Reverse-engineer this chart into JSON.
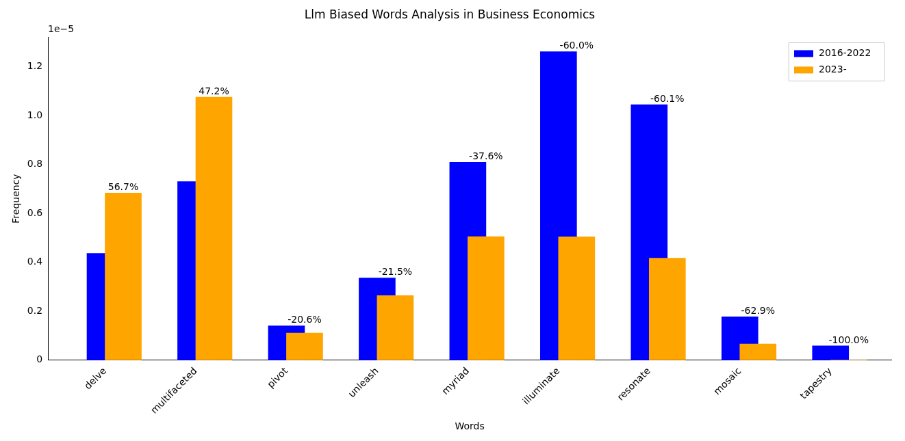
{
  "chart_data": {
    "type": "bar",
    "title": "Llm Biased Words Analysis in Business Economics",
    "xlabel": "Words",
    "ylabel": "Frequency",
    "annotations": [
      "1e−5",
      {
        "text": "56.7%",
        "x": "delve",
        "y": 0.683
      },
      {
        "text": "47.2%",
        "x": "multifaceted",
        "y": 1.075
      },
      {
        "text": "-20.6%",
        "x": "pivot",
        "y": 0.14
      },
      {
        "text": "-21.5%",
        "x": "unleash",
        "y": 0.336
      },
      {
        "text": "-37.6%",
        "x": "myriad",
        "y": 0.809
      },
      {
        "text": "-60.0%",
        "x": "illuminate",
        "y": 1.261
      },
      {
        "text": "-60.1%",
        "x": "resonate",
        "y": 1.044
      },
      {
        "text": "-62.9%",
        "x": "mosaic",
        "y": 0.177
      },
      {
        "text": "-100.0%",
        "x": "tapestry",
        "y": 0.058
      }
    ],
    "categories": [
      "delve",
      "multifaceted",
      "pivot",
      "unleash",
      "myriad",
      "illuminate",
      "resonate",
      "mosaic",
      "tapestry"
    ],
    "series": [
      {
        "name": "2016-2022",
        "color": "#0000ff",
        "values": [
          0.436,
          0.73,
          0.14,
          0.336,
          0.809,
          1.261,
          1.044,
          0.177,
          0.058
        ]
      },
      {
        "name": "2023-",
        "color": "#ffa500",
        "values": [
          0.683,
          1.075,
          0.111,
          0.264,
          0.505,
          0.504,
          0.417,
          0.066,
          0
        ]
      }
    ],
    "ylim": [
      0,
      1.32
    ],
    "yticks": [
      0,
      {
        "value": 0.2,
        "label": "0.2"
      },
      {
        "value": 0.4,
        "label": "0.4"
      },
      {
        "value": 0.6,
        "label": "0.6"
      },
      {
        "value": 0.8,
        "label": "0.8"
      },
      {
        "value": 1,
        "label": "1.0"
      },
      {
        "value": 1.2,
        "label": "1.2"
      }
    ],
    "grid": false,
    "legend": "top right"
  }
}
